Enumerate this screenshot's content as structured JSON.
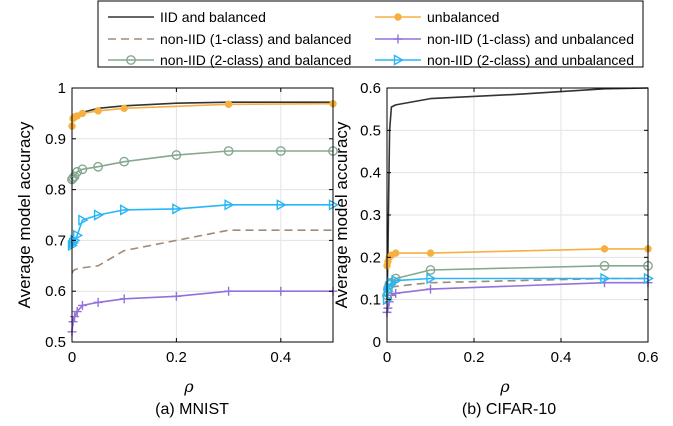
{
  "legend": [
    {
      "name": "IID and balanced",
      "color": "#333333",
      "dash": "",
      "marker": "none"
    },
    {
      "name": "unbalanced",
      "color": "#f5b041",
      "dash": "",
      "marker": "dot"
    },
    {
      "name": "non-IID (1-class) and balanced",
      "color": "#a08a78",
      "dash": "8,5",
      "marker": "none"
    },
    {
      "name": "non-IID (1-class) and unbalanced",
      "color": "#9370db",
      "dash": "",
      "marker": "plus"
    },
    {
      "name": "non-IID (2-class) and balanced",
      "color": "#85a88e",
      "dash": "",
      "marker": "circle"
    },
    {
      "name": "non-IID (2-class) and unbalanced",
      "color": "#29b6f6",
      "dash": "",
      "marker": "triangle"
    }
  ],
  "chart_data": [
    {
      "type": "line",
      "caption": "(a) MNIST",
      "xlabel": "ρ",
      "ylabel": "Average model accuracy",
      "xlim": [
        0,
        0.5
      ],
      "ylim": [
        0.5,
        1
      ],
      "xticks": [
        "0",
        "0.2",
        "0.4"
      ],
      "xtick_values": [
        0,
        0.2,
        0.4
      ],
      "yticks": [
        "0.5",
        "0.6",
        "0.7",
        "0.8",
        "0.9",
        "1"
      ],
      "ytick_values": [
        0.5,
        0.6,
        0.7,
        0.8,
        0.9,
        1.0
      ],
      "grid": true,
      "series": [
        {
          "name": "IID and balanced",
          "x": [
            0,
            0.002,
            0.005,
            0.01,
            0.02,
            0.05,
            0.1,
            0.2,
            0.3,
            0.5
          ],
          "y": [
            0.93,
            0.94,
            0.945,
            0.948,
            0.952,
            0.96,
            0.965,
            0.97,
            0.972,
            0.972
          ]
        },
        {
          "name": "unbalanced",
          "x": [
            0,
            0.002,
            0.005,
            0.01,
            0.02,
            0.05,
            0.1,
            0.3,
            0.5
          ],
          "y": [
            0.925,
            0.94,
            0.943,
            0.945,
            0.95,
            0.955,
            0.96,
            0.968,
            0.969
          ]
        },
        {
          "name": "non-IID (1-class) and balanced",
          "x": [
            0,
            0.002,
            0.005,
            0.01,
            0.02,
            0.05,
            0.1,
            0.2,
            0.3,
            0.5
          ],
          "y": [
            0.635,
            0.64,
            0.642,
            0.644,
            0.646,
            0.65,
            0.68,
            0.7,
            0.72,
            0.72
          ]
        },
        {
          "name": "non-IID (1-class) and unbalanced",
          "x": [
            0,
            0.002,
            0.005,
            0.01,
            0.02,
            0.05,
            0.1,
            0.2,
            0.3,
            0.4,
            0.5
          ],
          "y": [
            0.52,
            0.54,
            0.55,
            0.56,
            0.572,
            0.578,
            0.585,
            0.59,
            0.6,
            0.6,
            0.6
          ]
        },
        {
          "name": "non-IID (2-class) and balanced",
          "x": [
            0,
            0.002,
            0.005,
            0.01,
            0.02,
            0.05,
            0.1,
            0.2,
            0.3,
            0.4,
            0.5
          ],
          "y": [
            0.82,
            0.823,
            0.826,
            0.835,
            0.84,
            0.845,
            0.855,
            0.868,
            0.876,
            0.876,
            0.876
          ]
        },
        {
          "name": "non-IID (2-class) and unbalanced",
          "x": [
            0,
            0.002,
            0.005,
            0.01,
            0.02,
            0.05,
            0.1,
            0.2,
            0.3,
            0.4,
            0.5
          ],
          "y": [
            0.69,
            0.695,
            0.7,
            0.71,
            0.74,
            0.75,
            0.76,
            0.762,
            0.77,
            0.77,
            0.77
          ]
        }
      ]
    },
    {
      "type": "line",
      "caption": "(b) CIFAR-10",
      "xlabel": "ρ",
      "ylabel": "Average model accuracy",
      "xlim": [
        0,
        0.6
      ],
      "ylim": [
        0,
        0.6
      ],
      "xticks": [
        "0",
        "0.2",
        "0.4",
        "0.6"
      ],
      "xtick_values": [
        0,
        0.2,
        0.4,
        0.6
      ],
      "yticks": [
        "0",
        "0.1",
        "0.2",
        "0.3",
        "0.4",
        "0.5",
        "0.6"
      ],
      "ytick_values": [
        0,
        0.1,
        0.2,
        0.3,
        0.4,
        0.5,
        0.6
      ],
      "grid": true,
      "series": [
        {
          "name": "IID and balanced",
          "x": [
            0,
            0.002,
            0.004,
            0.006,
            0.01,
            0.02,
            0.1,
            0.3,
            0.5,
            0.6
          ],
          "y": [
            0.1,
            0.2,
            0.35,
            0.5,
            0.555,
            0.56,
            0.575,
            0.585,
            0.598,
            0.6
          ]
        },
        {
          "name": "unbalanced",
          "x": [
            0,
            0.002,
            0.005,
            0.01,
            0.02,
            0.1,
            0.5,
            0.6
          ],
          "y": [
            0.18,
            0.19,
            0.2,
            0.205,
            0.21,
            0.21,
            0.22,
            0.22
          ]
        },
        {
          "name": "non-IID (1-class) and balanced",
          "x": [
            0,
            0.002,
            0.005,
            0.01,
            0.05,
            0.1,
            0.3,
            0.5,
            0.6
          ],
          "y": [
            0.1,
            0.11,
            0.12,
            0.13,
            0.135,
            0.14,
            0.145,
            0.15,
            0.15
          ]
        },
        {
          "name": "non-IID (1-class) and unbalanced",
          "x": [
            0,
            0.002,
            0.005,
            0.01,
            0.02,
            0.1,
            0.5,
            0.6
          ],
          "y": [
            0.07,
            0.08,
            0.095,
            0.11,
            0.115,
            0.125,
            0.14,
            0.14
          ]
        },
        {
          "name": "non-IID (2-class) and balanced",
          "x": [
            0,
            0.002,
            0.005,
            0.01,
            0.02,
            0.1,
            0.5,
            0.6
          ],
          "y": [
            0.11,
            0.125,
            0.135,
            0.14,
            0.15,
            0.17,
            0.18,
            0.18
          ]
        },
        {
          "name": "non-IID (2-class) and unbalanced",
          "x": [
            0,
            0.002,
            0.005,
            0.01,
            0.02,
            0.1,
            0.5,
            0.6
          ],
          "y": [
            0.1,
            0.12,
            0.13,
            0.14,
            0.145,
            0.15,
            0.15,
            0.15
          ]
        }
      ]
    }
  ]
}
